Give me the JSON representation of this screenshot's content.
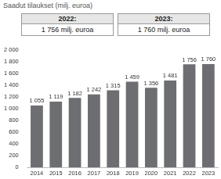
{
  "chart_data": {
    "type": "bar",
    "title": "Saadut tilaukset (milj. euroa)",
    "annotations": [
      {
        "label": "2022:",
        "text": "1 756 milj. euroa"
      },
      {
        "label": "2023:",
        "text": "1 760 milj. euroa"
      }
    ],
    "categories": [
      "2014",
      "2015",
      "2016",
      "2017",
      "2018",
      "2019",
      "2020",
      "2021",
      "2022",
      "2023"
    ],
    "values": [
      1055,
      1119,
      1182,
      1242,
      1315,
      1459,
      1356,
      1481,
      1756,
      1760
    ],
    "value_labels": [
      "1 055",
      "1 119",
      "1 182",
      "1 242",
      "1 315",
      "1 459",
      "1 356",
      "1 481",
      "1 756",
      "1 760"
    ],
    "data_labels": true,
    "color": "#6d6e71",
    "ylim": [
      0,
      2000
    ],
    "yticks": [
      0,
      200,
      400,
      600,
      800,
      {
        "value": 1000,
        "label": "1 000"
      },
      {
        "value": 1200,
        "label": "1 200"
      },
      {
        "value": 1400,
        "label": "1 400"
      },
      {
        "value": 1600,
        "label": "1 600"
      },
      {
        "value": 1800,
        "label": "1 800"
      },
      {
        "value": 2000,
        "label": "2 000"
      }
    ],
    "grid": false
  }
}
